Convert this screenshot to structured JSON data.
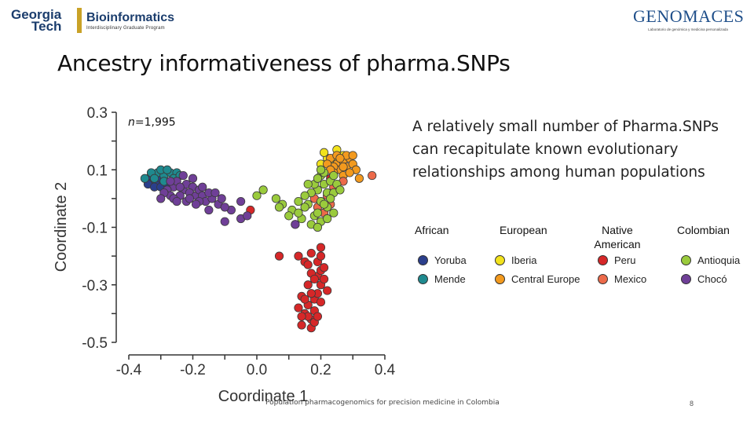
{
  "header": {
    "left_logo": {
      "georgia": "Georgia",
      "tech": "Tech",
      "title": "Bioinformatics",
      "subtitle": "Interdisciplinary Graduate Program"
    },
    "right_logo": {
      "word": "GENOMACES",
      "tagline": "Laboratorio de genómica y medicina personalizada"
    }
  },
  "slide": {
    "title": "Ancestry informativeness of pharma.SNPs",
    "description": "A relatively small number of Pharma.SNPs can recapitulate known evolutionary relationships among human populations",
    "footer": "Population pharmacogenomics for precision medicine in Colombia",
    "page_number": "8"
  },
  "chart_data": {
    "type": "scatter",
    "xlabel": "Coordinate 1",
    "ylabel": "Coordinate 2",
    "annotation": {
      "n_prefix": "n",
      "n_value": "=1,995"
    },
    "xlim": [
      -0.4,
      0.4
    ],
    "ylim": [
      -0.5,
      0.3
    ],
    "xticks": [
      "-0.4",
      "-0.2",
      "0.0",
      "0.2",
      "0.4"
    ],
    "yticks": [
      "0.3",
      "0.1",
      "-0.1",
      "-0.3",
      "-0.5"
    ],
    "legend_groups": [
      "African",
      "European",
      "Native American",
      "Colombian"
    ],
    "series": [
      {
        "name": "Yoruba",
        "group": "African",
        "color": "#2b3f8c",
        "points": [
          [
            -0.33,
            0.06
          ],
          [
            -0.32,
            0.07
          ],
          [
            -0.31,
            0.05
          ],
          [
            -0.3,
            0.07
          ],
          [
            -0.34,
            0.05
          ],
          [
            -0.29,
            0.06
          ],
          [
            -0.32,
            0.04
          ],
          [
            -0.3,
            0.04
          ],
          [
            -0.33,
            0.08
          ],
          [
            -0.28,
            0.05
          ]
        ]
      },
      {
        "name": "Mende",
        "group": "African",
        "color": "#1f8a8f",
        "points": [
          [
            -0.31,
            0.09
          ],
          [
            -0.29,
            0.08
          ],
          [
            -0.27,
            0.09
          ],
          [
            -0.25,
            0.09
          ],
          [
            -0.33,
            0.09
          ],
          [
            -0.3,
            0.1
          ],
          [
            -0.26,
            0.07
          ],
          [
            -0.28,
            0.1
          ],
          [
            -0.24,
            0.08
          ],
          [
            -0.32,
            0.07
          ],
          [
            -0.29,
            0.06
          ],
          [
            -0.35,
            0.07
          ]
        ]
      },
      {
        "name": "Iberia",
        "group": "European",
        "color": "#f2e21c",
        "points": [
          [
            0.2,
            0.12
          ],
          [
            0.22,
            0.14
          ],
          [
            0.27,
            0.15
          ],
          [
            0.24,
            0.13
          ],
          [
            0.21,
            0.16
          ],
          [
            0.25,
            0.17
          ]
        ]
      },
      {
        "name": "Central Europe",
        "group": "European",
        "color": "#f39a1e",
        "points": [
          [
            0.23,
            0.14
          ],
          [
            0.25,
            0.12
          ],
          [
            0.27,
            0.13
          ],
          [
            0.28,
            0.11
          ],
          [
            0.29,
            0.14
          ],
          [
            0.3,
            0.12
          ],
          [
            0.26,
            0.1
          ],
          [
            0.24,
            0.11
          ],
          [
            0.28,
            0.15
          ],
          [
            0.31,
            0.1
          ],
          [
            0.27,
            0.08
          ],
          [
            0.25,
            0.15
          ],
          [
            0.32,
            0.07
          ],
          [
            0.29,
            0.09
          ],
          [
            0.22,
            0.12
          ],
          [
            0.26,
            0.14
          ],
          [
            0.3,
            0.15
          ],
          [
            0.24,
            0.09
          ],
          [
            0.27,
            0.11
          ],
          [
            0.23,
            0.1
          ]
        ]
      },
      {
        "name": "Peru",
        "group": "Native American",
        "color": "#d62728",
        "points": [
          [
            0.14,
            -0.34
          ],
          [
            0.16,
            -0.37
          ],
          [
            0.18,
            -0.35
          ],
          [
            0.15,
            -0.4
          ],
          [
            0.17,
            -0.42
          ],
          [
            0.19,
            -0.33
          ],
          [
            0.2,
            -0.3
          ],
          [
            0.16,
            -0.3
          ],
          [
            0.14,
            -0.44
          ],
          [
            0.17,
            -0.45
          ],
          [
            0.15,
            -0.35
          ],
          [
            0.18,
            -0.39
          ],
          [
            0.2,
            -0.36
          ],
          [
            0.13,
            -0.38
          ],
          [
            0.19,
            -0.27
          ],
          [
            0.21,
            -0.28
          ],
          [
            0.17,
            -0.26
          ],
          [
            0.15,
            -0.22
          ],
          [
            0.19,
            -0.22
          ],
          [
            0.2,
            -0.25
          ],
          [
            0.22,
            -0.32
          ],
          [
            0.16,
            -0.41
          ],
          [
            0.18,
            -0.43
          ],
          [
            0.14,
            -0.41
          ],
          [
            0.19,
            -0.41
          ],
          [
            0.17,
            -0.33
          ],
          [
            0.21,
            -0.24
          ],
          [
            0.18,
            -0.28
          ],
          [
            0.13,
            -0.2
          ],
          [
            0.17,
            -0.19
          ],
          [
            0.07,
            -0.2
          ],
          [
            0.2,
            -0.2
          ],
          [
            0.16,
            -0.23
          ],
          [
            -0.02,
            -0.04
          ],
          [
            0.22,
            0.02
          ],
          [
            0.23,
            0.07
          ],
          [
            0.2,
            -0.17
          ]
        ]
      },
      {
        "name": "Mexico",
        "group": "Native American",
        "color": "#ec6a4a",
        "points": [
          [
            0.2,
            -0.01
          ],
          [
            0.22,
            0.01
          ],
          [
            0.19,
            -0.03
          ],
          [
            0.21,
            -0.05
          ],
          [
            0.23,
            -0.02
          ],
          [
            0.18,
            0.0
          ],
          [
            0.27,
            0.06
          ],
          [
            0.24,
            0.04
          ],
          [
            0.36,
            0.08
          ]
        ]
      },
      {
        "name": "Antioquia",
        "group": "Colombian",
        "color": "#9acb3c",
        "points": [
          [
            0.21,
            0.05
          ],
          [
            0.19,
            0.03
          ],
          [
            0.23,
            0.06
          ],
          [
            0.2,
            0.08
          ],
          [
            0.22,
            0.02
          ],
          [
            0.18,
            0.05
          ],
          [
            0.24,
            0.02
          ],
          [
            0.19,
            0.07
          ],
          [
            0.25,
            0.05
          ],
          [
            0.21,
            0.09
          ],
          [
            0.17,
            0.02
          ],
          [
            0.2,
            -0.01
          ],
          [
            0.22,
            -0.03
          ],
          [
            0.16,
            -0.02
          ],
          [
            0.18,
            -0.06
          ],
          [
            0.2,
            -0.08
          ],
          [
            0.15,
            -0.03
          ],
          [
            0.13,
            -0.01
          ],
          [
            0.14,
            -0.07
          ],
          [
            0.17,
            -0.09
          ],
          [
            0.22,
            -0.07
          ],
          [
            0.24,
            -0.05
          ],
          [
            0.11,
            -0.04
          ],
          [
            0.12,
            -0.09
          ],
          [
            0.19,
            -0.1
          ],
          [
            0.08,
            -0.02
          ],
          [
            0.1,
            -0.06
          ],
          [
            0.06,
            0.0
          ],
          [
            0.02,
            0.03
          ],
          [
            0.0,
            0.01
          ],
          [
            0.21,
            -0.02
          ],
          [
            0.23,
            0.0
          ],
          [
            0.15,
            0.01
          ],
          [
            0.24,
            0.08
          ],
          [
            0.2,
            0.1
          ],
          [
            0.19,
            -0.05
          ],
          [
            0.07,
            -0.03
          ],
          [
            0.13,
            -0.05
          ],
          [
            0.26,
            0.03
          ],
          [
            0.16,
            0.05
          ]
        ]
      },
      {
        "name": "Chocó",
        "group": "Colombian",
        "color": "#6f3f97",
        "points": [
          [
            -0.26,
            0.04
          ],
          [
            -0.28,
            0.03
          ],
          [
            -0.25,
            0.06
          ],
          [
            -0.23,
            0.03
          ],
          [
            -0.22,
            0.05
          ],
          [
            -0.24,
            0.01
          ],
          [
            -0.27,
            0.01
          ],
          [
            -0.29,
            0.02
          ],
          [
            -0.26,
            0.0
          ],
          [
            -0.2,
            0.04
          ],
          [
            -0.21,
            0.02
          ],
          [
            -0.19,
            0.01
          ],
          [
            -0.22,
            -0.01
          ],
          [
            -0.25,
            -0.01
          ],
          [
            -0.3,
            0.0
          ],
          [
            -0.18,
            0.03
          ],
          [
            -0.17,
            0.01
          ],
          [
            -0.2,
            0.07
          ],
          [
            -0.23,
            0.08
          ],
          [
            -0.16,
            -0.01
          ],
          [
            -0.14,
            0.0
          ],
          [
            -0.15,
            0.02
          ],
          [
            -0.18,
            -0.01
          ],
          [
            -0.12,
            -0.02
          ],
          [
            -0.13,
            0.02
          ],
          [
            -0.27,
            0.06
          ],
          [
            -0.24,
            0.04
          ],
          [
            -0.21,
            0.0
          ],
          [
            -0.19,
            -0.02
          ],
          [
            -0.17,
            0.04
          ],
          [
            -0.11,
            0.0
          ],
          [
            -0.05,
            -0.01
          ],
          [
            -0.08,
            -0.04
          ],
          [
            -0.1,
            -0.03
          ],
          [
            -0.15,
            -0.04
          ],
          [
            -0.1,
            -0.08
          ],
          [
            -0.05,
            -0.07
          ],
          [
            -0.03,
            -0.06
          ],
          [
            0.12,
            -0.09
          ]
        ]
      }
    ]
  }
}
